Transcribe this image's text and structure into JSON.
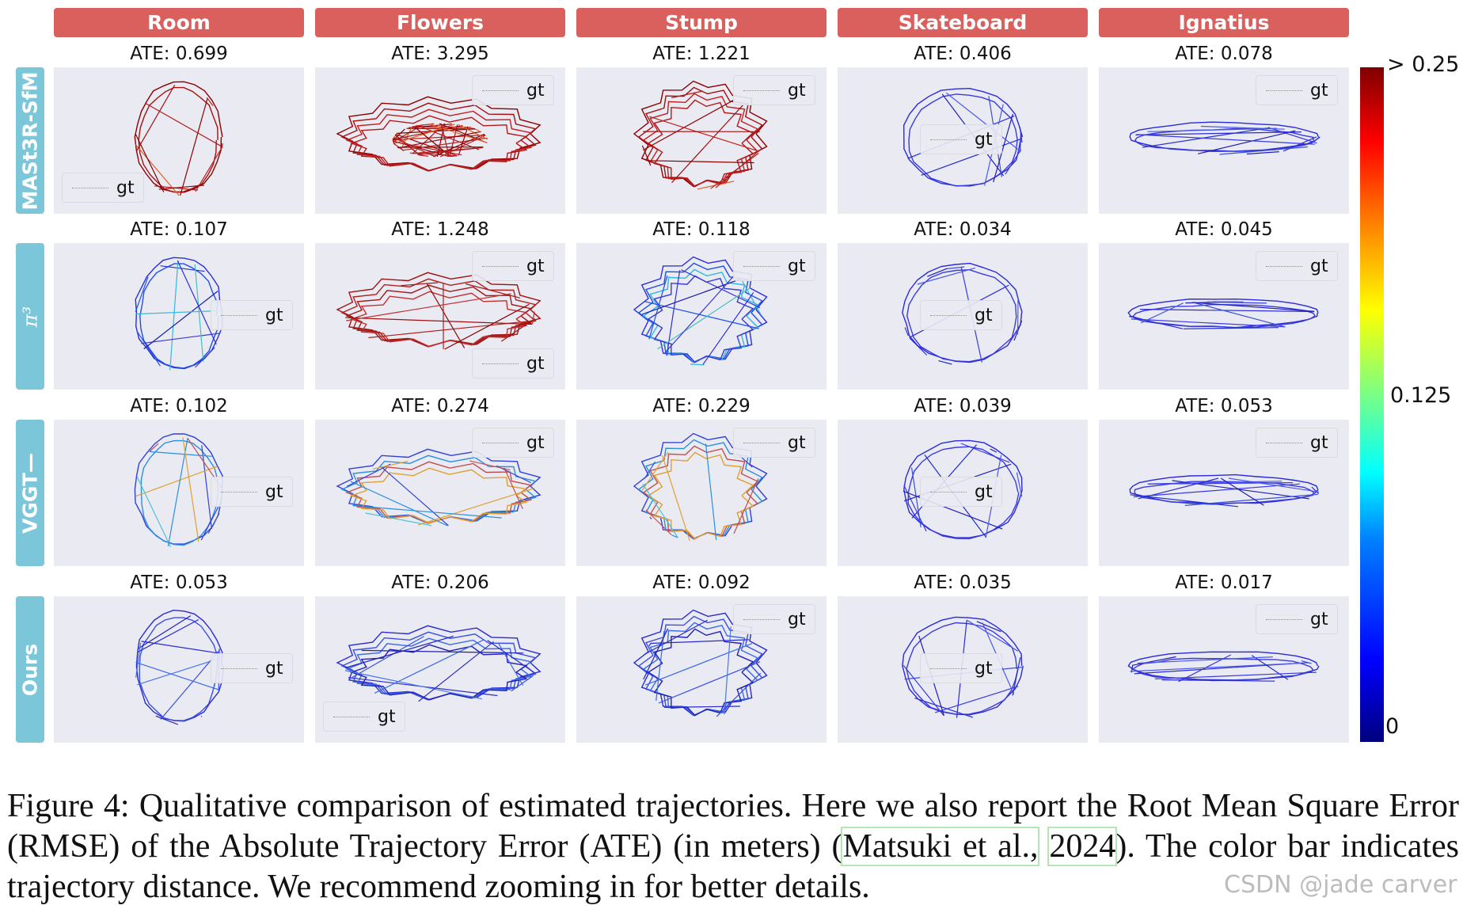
{
  "columns": [
    "Room",
    "Flowers",
    "Stump",
    "Skateboard",
    "Ignatius"
  ],
  "rows": [
    {
      "label": "MASt3R-SfM",
      "ate": [
        "ATE: 0.699",
        "ATE: 3.295",
        "ATE: 1.221",
        "ATE: 0.406",
        "ATE: 0.078"
      ]
    },
    {
      "label": "π³",
      "ate": [
        "ATE: 0.107",
        "ATE: 1.248",
        "ATE: 0.118",
        "ATE: 0.034",
        "ATE: 0.045"
      ]
    },
    {
      "label": "VGGT—",
      "ate": [
        "ATE: 0.102",
        "ATE: 0.274",
        "ATE: 0.229",
        "ATE: 0.039",
        "ATE: 0.053"
      ]
    },
    {
      "label": "Ours",
      "ate": [
        "ATE: 0.053",
        "ATE: 0.206",
        "ATE: 0.092",
        "ATE: 0.035",
        "ATE: 0.017"
      ]
    }
  ],
  "legend_label": "gt",
  "colorbar": {
    "max_label": "> 0.25",
    "mid_label": "0.125",
    "min_label": "0",
    "range": [
      0,
      0.25
    ]
  },
  "caption": {
    "prefix": "Figure 4:  Qualitative comparison of estimated trajectories.  Here we also report the Root Mean Square Error (RMSE) of the Absolute Trajectory Error (ATE) (in meters) (",
    "cite_author": "Matsuki et al.,",
    "cite_year": "2024",
    "suffix": "). The color bar indicates trajectory distance. We recommend zooming in for better details."
  },
  "watermark": "CSDN @jade carver",
  "colors": {
    "header_bg": "#d9605c",
    "row_label_bg": "#7bc6d8",
    "plot_bg": "#eaeaf2"
  }
}
